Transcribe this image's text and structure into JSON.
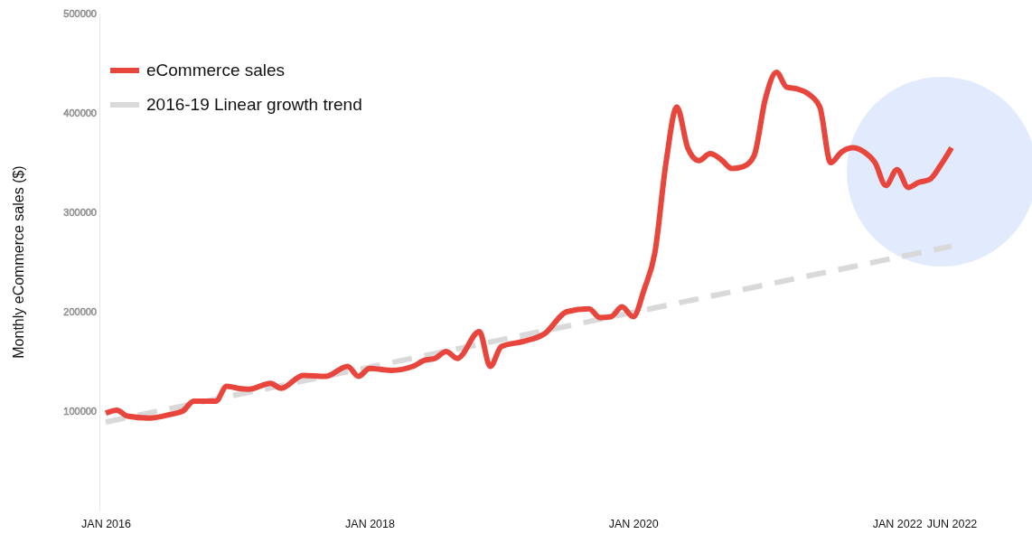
{
  "chart_data": {
    "type": "line",
    "ylabel": "Monthly eCommerce sales ($)",
    "xlim": [
      "2016-01",
      "2022-06"
    ],
    "ylim": [
      0,
      500000
    ],
    "xticks": [
      {
        "value": "2016-01",
        "label": "JAN 2016"
      },
      {
        "value": "2018-01",
        "label": "JAN 2018"
      },
      {
        "value": "2020-01",
        "label": "JAN 2020"
      },
      {
        "value": "2022-01",
        "label": "JAN 2022"
      },
      {
        "value": "2022-06",
        "label": "JUN 2022"
      }
    ],
    "yticks": [
      100000,
      200000,
      300000,
      400000,
      500000
    ],
    "grid": false,
    "legend": "top left",
    "marker": "none",
    "series": [
      {
        "name": "eCommerce sales",
        "color": "#e8453c",
        "line_style": "solid",
        "x": [
          "2016-01",
          "2016-02",
          "2016-03",
          "2016-05",
          "2016-07",
          "2016-08",
          "2016-09",
          "2016-11",
          "2016-12",
          "2017-01",
          "2017-02",
          "2017-04",
          "2017-05",
          "2017-07",
          "2017-09",
          "2017-11",
          "2017-12",
          "2018-01",
          "2018-03",
          "2018-05",
          "2018-06",
          "2018-07",
          "2018-08",
          "2018-09",
          "2018-11",
          "2018-12",
          "2019-01",
          "2019-03",
          "2019-05",
          "2019-07",
          "2019-09",
          "2019-10",
          "2019-11",
          "2019-12",
          "2020-01",
          "2020-02",
          "2020-03",
          "2020-04",
          "2020-05",
          "2020-06",
          "2020-07",
          "2020-08",
          "2020-09",
          "2020-10",
          "2020-11",
          "2020-12",
          "2021-01",
          "2021-02",
          "2021-03",
          "2021-04",
          "2021-05",
          "2021-06",
          "2021-07",
          "2021-08",
          "2021-09",
          "2021-10",
          "2021-11",
          "2021-12",
          "2022-01",
          "2022-02",
          "2022-03",
          "2022-04",
          "2022-05",
          "2022-06"
        ],
        "values": [
          98000,
          101000,
          95000,
          93000,
          97000,
          100000,
          110000,
          110000,
          125000,
          123000,
          122000,
          128000,
          123000,
          136000,
          135000,
          145000,
          135000,
          143000,
          141000,
          145000,
          151000,
          153000,
          160000,
          153000,
          180000,
          145000,
          165000,
          170000,
          178000,
          200000,
          203000,
          194000,
          195000,
          205000,
          195000,
          223000,
          259000,
          350000,
          406000,
          364000,
          352000,
          359000,
          353000,
          344000,
          346000,
          357000,
          414000,
          441000,
          426000,
          424000,
          419000,
          406000,
          350000,
          361000,
          365000,
          361000,
          350000,
          327000,
          343000,
          325000,
          330000,
          333000,
          347000,
          365000
        ]
      },
      {
        "name": "2016-19 Linear growth trend",
        "color": "#d9d9d9",
        "line_style": "dashed",
        "x": [
          "2016-01",
          "2022-06"
        ],
        "values": [
          89000,
          266000
        ]
      }
    ]
  }
}
